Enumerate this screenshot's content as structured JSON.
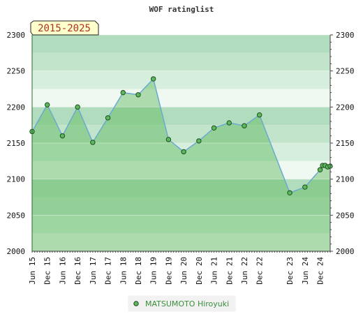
{
  "chart_data": {
    "type": "line",
    "title": "WOF ratinglist",
    "range_label": "2015-2025",
    "xlabel": "",
    "ylabel": "",
    "ylim": [
      2000,
      2300
    ],
    "y_ticks": [
      2000,
      2050,
      2100,
      2150,
      2200,
      2250,
      2300
    ],
    "y_ticks_right": [
      2000,
      2050,
      2100,
      2150,
      2200,
      2250,
      2300
    ],
    "x_tick_labels": [
      "Jun 15",
      "Dec 15",
      "Jun 16",
      "Dec 16",
      "Jun 17",
      "Dec 17",
      "Jun 18",
      "Dec 18",
      "Jun 19",
      "Dec 19",
      "Jun 20",
      "Dec 20",
      "Jun 21",
      "Dec 21",
      "Jun 22",
      "Dec 22",
      "Dec 23",
      "Jun 24",
      "Dec 24"
    ],
    "grid": true,
    "legend_position": "bottom-center",
    "series": [
      {
        "name": "MATSUMOTO Hiroyuki",
        "color": "#5cb85c",
        "line_color": "#6aaad0",
        "x": [
          "Jun 15",
          "Dec 15",
          "Jun 16",
          "Dec 16",
          "Jun 17",
          "Dec 17",
          "Jun 18",
          "Dec 18",
          "Jun 19",
          "Dec 19",
          "Jun 20",
          "Dec 20",
          "Jun 21",
          "Dec 21",
          "Jun 22",
          "Dec 22",
          "Dec 23",
          "Jun 24",
          "Dec 24",
          "Jan 25",
          "Feb 25",
          "Mar 25",
          "Apr 25"
        ],
        "values": [
          2166,
          2203,
          2160,
          2200,
          2151,
          2185,
          2220,
          2217,
          2239,
          2155,
          2138,
          2153,
          2171,
          2178,
          2174,
          2189,
          2081,
          2089,
          2113,
          2119,
          2119,
          2117,
          2118
        ]
      }
    ]
  }
}
